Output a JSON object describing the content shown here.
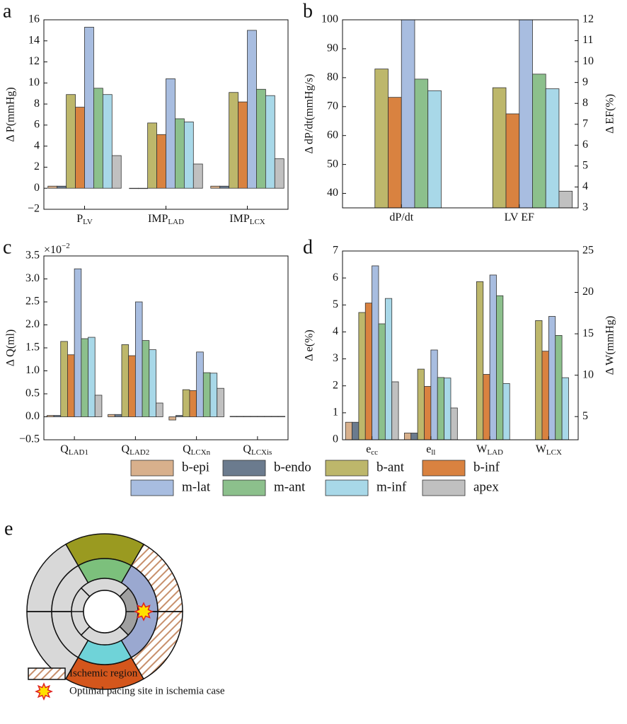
{
  "chart_data": [
    {
      "type": "bar",
      "panel_label": "a",
      "ylabel": "Δ P(mmHg)",
      "categories": [
        {
          "text": "P",
          "sub": "LV"
        },
        {
          "text": "IMP",
          "sub": "LAD"
        },
        {
          "text": "IMP",
          "sub": "LCX"
        }
      ],
      "ylim": [
        -2,
        16
      ],
      "yticks": [
        {
          "value": -2,
          "label": "−2"
        },
        0,
        2,
        4,
        6,
        8,
        10,
        12,
        14,
        16
      ],
      "series": [
        {
          "name": "b-epi",
          "color": "#d8b08c",
          "values": [
            0.2,
            0,
            0.2
          ]
        },
        {
          "name": "b-endo",
          "color": "#6b7b8e",
          "values": [
            0.2,
            0,
            0.2
          ]
        },
        {
          "name": "b-ant",
          "color": "#bdb76b",
          "values": [
            8.9,
            6.2,
            9.1
          ]
        },
        {
          "name": "b-inf",
          "color": "#d98240",
          "values": [
            7.7,
            5.1,
            8.2
          ]
        },
        {
          "name": "m-lat",
          "color": "#a8bde0",
          "values": [
            15.3,
            10.4,
            15.0
          ]
        },
        {
          "name": "m-ant",
          "color": "#8cc08c",
          "values": [
            9.5,
            6.6,
            9.4
          ]
        },
        {
          "name": "m-inf",
          "color": "#a8d8e8",
          "values": [
            8.9,
            6.3,
            8.8
          ]
        },
        {
          "name": "apex",
          "color": "#c0c0c0",
          "values": [
            3.1,
            2.3,
            2.8
          ]
        }
      ]
    },
    {
      "type": "bar",
      "panel_label": "b",
      "ylabel": "Δ dP/dt(mmHg/s)",
      "y2label": "Δ EF(%)",
      "categories": [
        {
          "text": "dP/dt"
        },
        {
          "text": "LV EF"
        }
      ],
      "category_axes": [
        "y",
        "y2"
      ],
      "ylim": [
        35,
        100
      ],
      "yticks": [
        40,
        50,
        60,
        70,
        80,
        90,
        100
      ],
      "y2lim": [
        3,
        12
      ],
      "y2ticks": [
        3,
        4,
        5,
        6,
        7,
        8,
        9,
        10,
        11,
        12
      ],
      "series": [
        {
          "color": "#d8b08c",
          "values": [
            null,
            null
          ]
        },
        {
          "color": "#6b7b8e",
          "values": [
            null,
            null
          ]
        },
        {
          "color": "#bdb76b",
          "values": [
            83,
            8.75
          ]
        },
        {
          "color": "#d98240",
          "values": [
            73.2,
            7.5
          ]
        },
        {
          "color": "#a8bde0",
          "values": [
            100,
            12
          ]
        },
        {
          "color": "#8cc08c",
          "values": [
            79.5,
            9.4
          ]
        },
        {
          "color": "#a8d8e8",
          "values": [
            75.5,
            8.7
          ]
        },
        {
          "color": "#c0c0c0",
          "values": [
            null,
            3.8
          ]
        }
      ]
    },
    {
      "type": "bar",
      "panel_label": "c",
      "ylabel": "Δ Q(ml)",
      "offset_text": {
        "base": "×10",
        "exp": "−2"
      },
      "categories": [
        {
          "text": "Q",
          "sub": "LAD1"
        },
        {
          "text": "Q",
          "sub": "LAD2"
        },
        {
          "text": "Q",
          "sub": "LCXn"
        },
        {
          "text": "Q",
          "sub": "LCXis"
        }
      ],
      "ylim": [
        -0.5,
        3.5
      ],
      "yticks": [
        {
          "value": -0.5,
          "label": "−0.5"
        },
        {
          "value": 0,
          "label": "0.0"
        },
        0.5,
        {
          "value": 1,
          "label": "1.0"
        },
        1.5,
        {
          "value": 2,
          "label": "2.0"
        },
        2.5,
        {
          "value": 3,
          "label": "3.0"
        },
        3.5
      ],
      "series": [
        {
          "color": "#d8b08c",
          "values": [
            0.03,
            0.05,
            -0.07,
            0.01
          ]
        },
        {
          "color": "#6b7b8e",
          "values": [
            0.03,
            0.05,
            0.03,
            0.01
          ]
        },
        {
          "color": "#bdb76b",
          "values": [
            1.64,
            1.57,
            0.59,
            0.01
          ]
        },
        {
          "color": "#d98240",
          "values": [
            1.35,
            1.33,
            0.57,
            0.01
          ]
        },
        {
          "color": "#a8bde0",
          "values": [
            3.22,
            2.5,
            1.41,
            0.01
          ]
        },
        {
          "color": "#8cc08c",
          "values": [
            1.7,
            1.66,
            0.96,
            0.01
          ]
        },
        {
          "color": "#a8d8e8",
          "values": [
            1.73,
            1.46,
            0.95,
            0.01
          ]
        },
        {
          "color": "#c0c0c0",
          "values": [
            0.47,
            0.3,
            0.62,
            0.01
          ]
        }
      ]
    },
    {
      "type": "bar",
      "panel_label": "d",
      "ylabel": "Δ e(%)",
      "y2label": "Δ W(mmHg)",
      "categories": [
        {
          "text": "e",
          "sub": "cc"
        },
        {
          "text": "e",
          "sub": "ll"
        },
        {
          "text": "W",
          "sub": "LAD"
        },
        {
          "text": "W",
          "sub": "LCX"
        }
      ],
      "category_axes": [
        "y",
        "y",
        "y2",
        "y2"
      ],
      "ylim": [
        0,
        7
      ],
      "yticks": [
        0,
        1,
        2,
        3,
        4,
        5,
        6,
        7
      ],
      "y2lim": [
        2.2,
        25
      ],
      "y2ticks": [
        5,
        10,
        15,
        20,
        25
      ],
      "series": [
        {
          "color": "#d8b08c",
          "values": [
            0.65,
            0.25,
            null,
            null
          ]
        },
        {
          "color": "#6b7b8e",
          "values": [
            0.65,
            0.25,
            null,
            null
          ]
        },
        {
          "color": "#bdb76b",
          "values": [
            4.72,
            2.62,
            21.3,
            16.6
          ]
        },
        {
          "color": "#d98240",
          "values": [
            5.07,
            1.98,
            10.1,
            12.9
          ]
        },
        {
          "color": "#a8bde0",
          "values": [
            6.45,
            3.33,
            22.1,
            17.1
          ]
        },
        {
          "color": "#8cc08c",
          "values": [
            4.3,
            2.31,
            19.6,
            14.8
          ]
        },
        {
          "color": "#a8d8e8",
          "values": [
            5.24,
            2.29,
            9.0,
            9.7
          ]
        },
        {
          "color": "#c0c0c0",
          "values": [
            2.15,
            1.18,
            null,
            null
          ]
        }
      ]
    }
  ],
  "panel_e": {
    "label": "e",
    "legend": [
      "Ischemic region",
      "Optimal pacing site in ischemia case"
    ]
  }
}
